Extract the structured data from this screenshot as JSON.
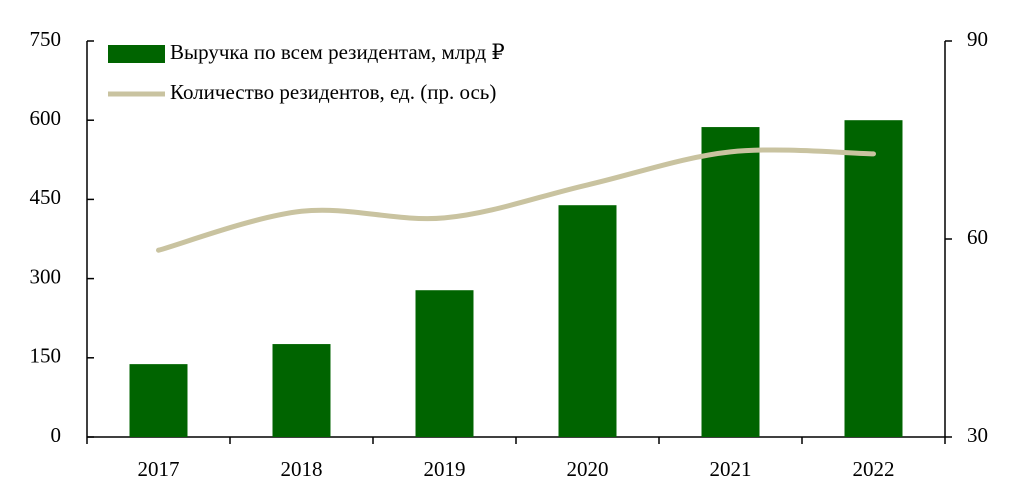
{
  "chart_data": {
    "type": "bar_line",
    "categories": [
      "2017",
      "2018",
      "2019",
      "2020",
      "2021",
      "2022"
    ],
    "series": [
      {
        "name": "Выручка по всем резидентам, млрд ₽",
        "type": "bar",
        "color": "#006400",
        "values": [
          138,
          176,
          278,
          439,
          587,
          600
        ]
      },
      {
        "name": "Количество резидентов, ед. (пр. ось)",
        "type": "line",
        "axis": "y2",
        "color": "#c9c3a0",
        "values": [
          58.3,
          64.2,
          63.2,
          68.2,
          73.2,
          72.9
        ]
      }
    ],
    "ylim": [
      0,
      750
    ],
    "yticks": [
      0,
      150,
      300,
      450,
      600,
      750
    ],
    "y2lim": [
      30,
      90
    ],
    "y2ticks": [
      30,
      60,
      90
    ],
    "grid": false,
    "legend": "top-left"
  }
}
